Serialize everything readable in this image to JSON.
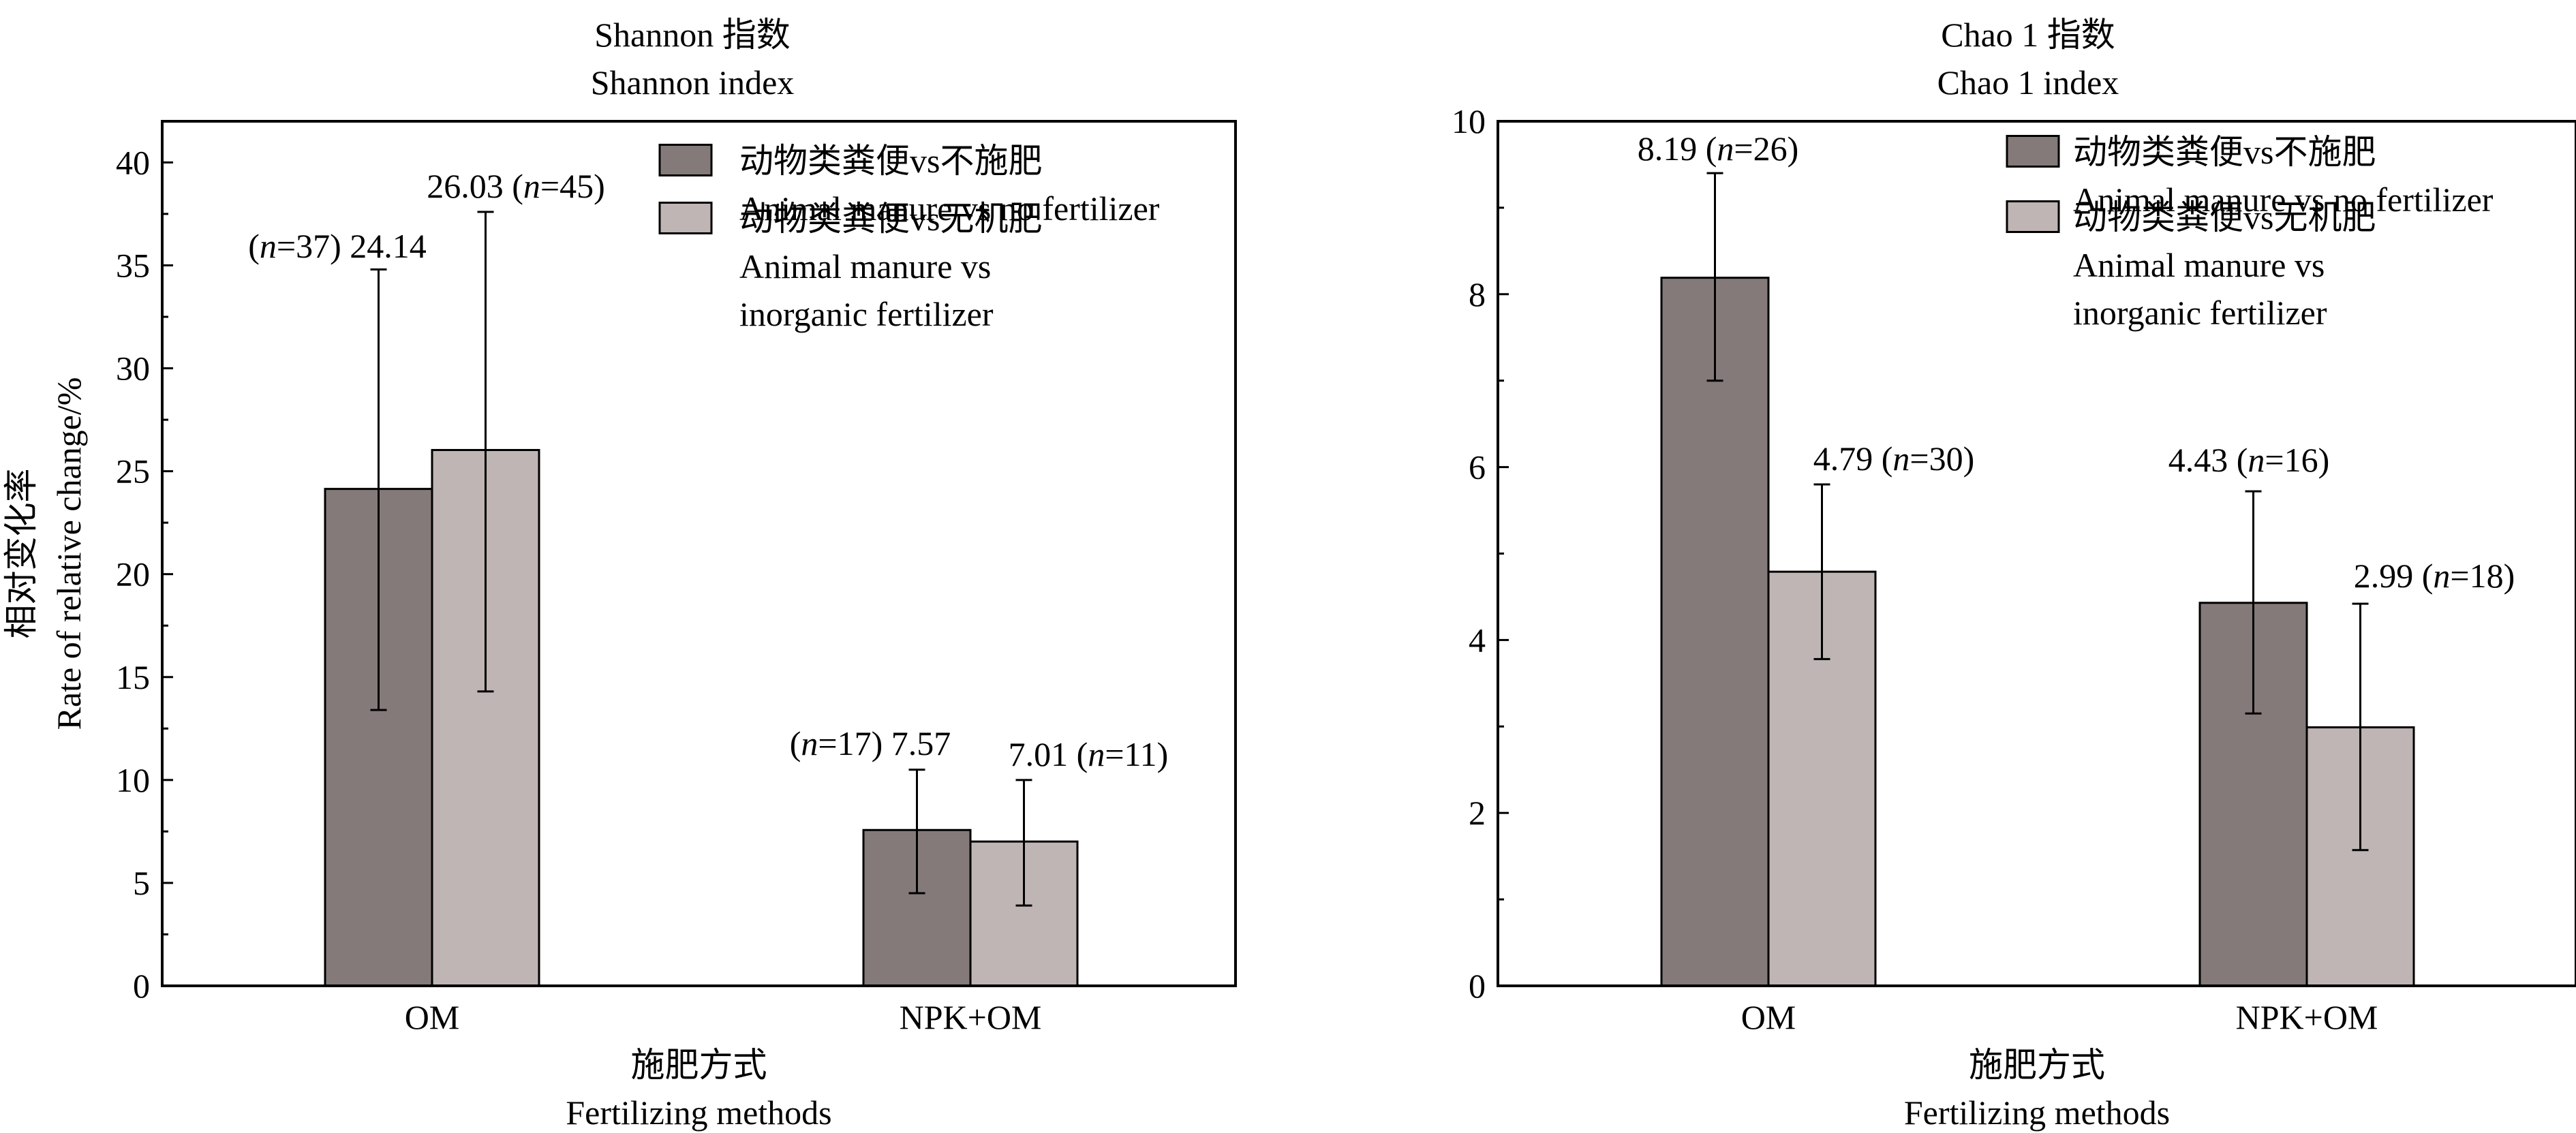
{
  "chart_data": [
    {
      "type": "bar",
      "title": "Shannon 指数",
      "subtitle": "Shannon index",
      "ylabel": "相对变化率",
      "ylabel_en": "Rate of relative change/%",
      "xlabel": "施肥方式",
      "xlabel_en": "Fertilizing methods",
      "ylim": [
        0,
        42
      ],
      "yticks": [
        0,
        5,
        10,
        15,
        20,
        25,
        30,
        35,
        40
      ],
      "categories": [
        "OM",
        "NPK+OM"
      ],
      "series": [
        {
          "name": "动物类粪便vs不施肥",
          "name_en": "Animal manure vs no fertilizer",
          "color": "#857a7a",
          "values": [
            24.14,
            7.57
          ],
          "err_low": [
            13.4,
            4.5
          ],
          "err_high": [
            34.8,
            10.5
          ],
          "n": [
            37,
            17
          ]
        },
        {
          "name": "动物类粪便vs无机肥",
          "name_en": [
            "Animal manure vs",
            "inorganic fertilizer"
          ],
          "color": "#bfb5b5",
          "values": [
            26.03,
            7.01
          ],
          "err_low": [
            14.3,
            3.9
          ],
          "err_high": [
            37.6,
            10.0
          ],
          "n": [
            45,
            11
          ]
        }
      ],
      "annotations": [
        "(n=37) 24.14",
        "26.03 (n=45)",
        "(n=17) 7.57",
        "7.01 (n=11)"
      ],
      "legend_position": "top-right"
    },
    {
      "type": "bar",
      "title": "Chao 1 指数",
      "subtitle": "Chao 1 index",
      "ylabel": "",
      "xlabel": "施肥方式",
      "xlabel_en": "Fertilizing methods",
      "ylim": [
        0,
        10
      ],
      "yticks": [
        0,
        2,
        4,
        6,
        8,
        10
      ],
      "categories": [
        "OM",
        "NPK+OM"
      ],
      "series": [
        {
          "name": "动物类粪便vs不施肥",
          "name_en": "Animal manure vs no fertilizer",
          "color": "#857a7a",
          "values": [
            8.19,
            4.43
          ],
          "err_low": [
            7.0,
            3.15
          ],
          "err_high": [
            9.4,
            5.72
          ],
          "n": [
            26,
            16
          ]
        },
        {
          "name": "动物类粪便vs无机肥",
          "name_en": [
            "Animal manure vs",
            "inorganic fertilizer"
          ],
          "color": "#bfb5b5",
          "values": [
            4.79,
            2.99
          ],
          "err_low": [
            3.78,
            1.57
          ],
          "err_high": [
            5.8,
            4.42
          ],
          "n": [
            30,
            18
          ]
        }
      ],
      "annotations": [
        "8.19 (n=26)",
        "4.79 (n=30)",
        "4.43 (n=16)",
        "2.99 (n=18)"
      ],
      "legend_position": "top-right"
    }
  ]
}
